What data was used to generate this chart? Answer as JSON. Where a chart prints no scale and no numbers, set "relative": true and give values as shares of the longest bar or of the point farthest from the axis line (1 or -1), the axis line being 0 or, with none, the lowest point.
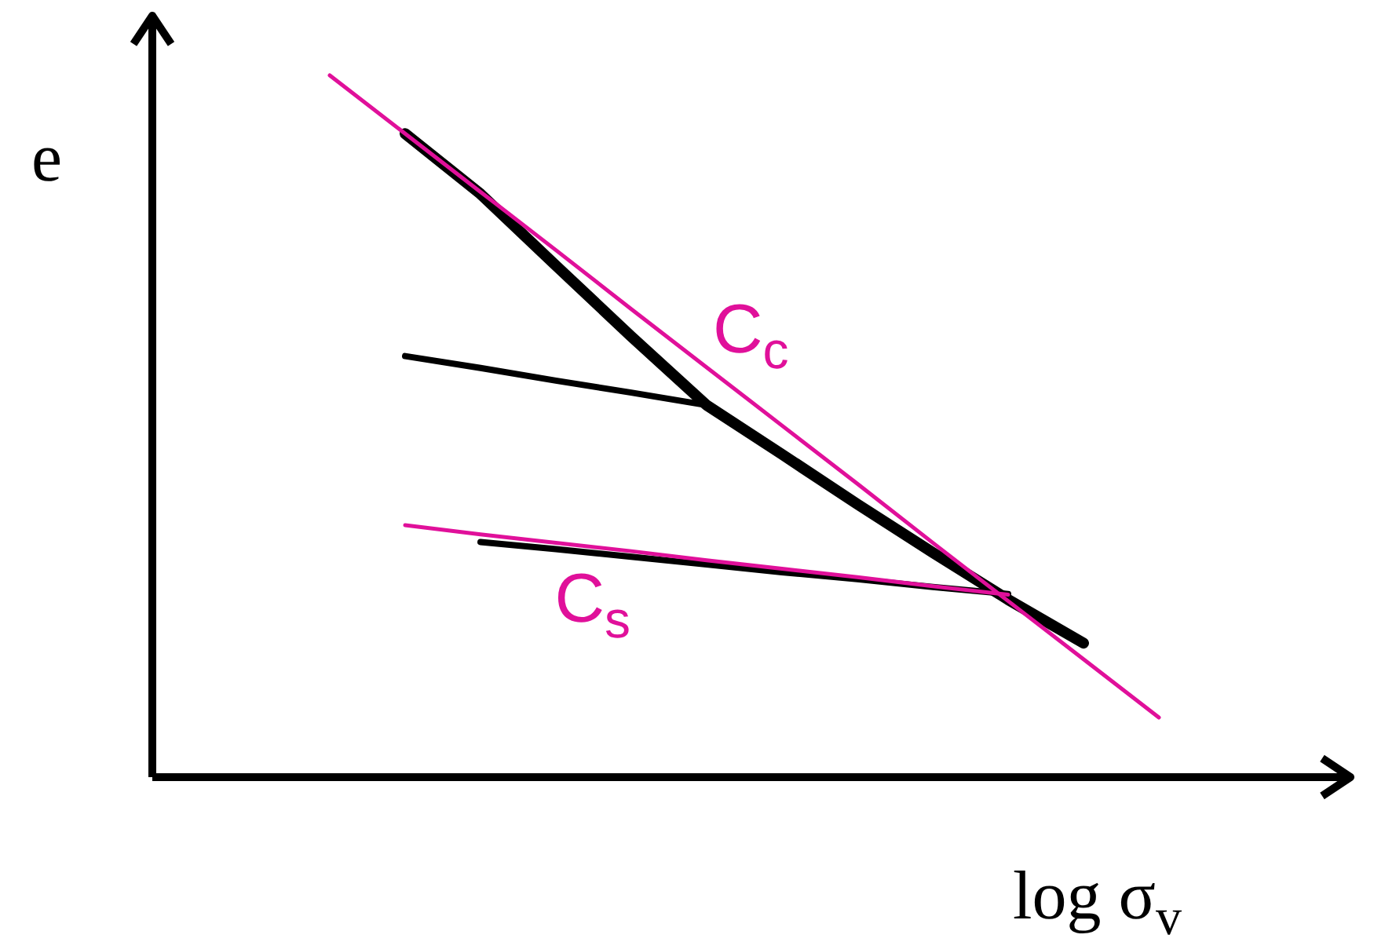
{
  "chart_data": {
    "type": "line",
    "relative": true,
    "xlabel": "log σ$_{v}$",
    "ylabel": "e",
    "marker": "none",
    "line_style": "solid",
    "categories": [
      null,
      null,
      null,
      null,
      null,
      null,
      null,
      null,
      null,
      null,
      null,
      null
    ],
    "series": [
      {
        "color": "#000000",
        "values": [
          null,
          0.917,
          0.831,
          0.729,
          0.628,
          0.53,
          0.46,
          0.389,
          0.32,
          0.253,
          0.191,
          null
        ]
      },
      {
        "color": "#000000",
        "values": [
          null,
          0.6,
          0.583,
          0.565,
          0.548,
          0.53,
          null,
          null,
          null,
          null,
          null,
          null
        ]
      },
      {
        "color": "#000000",
        "values": [
          null,
          null,
          0.335,
          0.325,
          0.314,
          0.303,
          0.292,
          0.282,
          0.271,
          0.261,
          null,
          null
        ]
      },
      {
        "name": "C$_{c}$",
        "color": "#e0109a",
        "values": [
          1,
          0.917,
          0.834,
          0.751,
          0.667,
          0.584,
          0.501,
          0.418,
          0.334,
          0.251,
          0.168,
          0.085
        ]
      },
      {
        "name": "C$_{s}$",
        "color": "#e0109a",
        "values": [
          null,
          0.359,
          0.346,
          0.334,
          0.322,
          0.309,
          0.297,
          0.285,
          0.272,
          0.26,
          null,
          null
        ]
      }
    ]
  }
}
